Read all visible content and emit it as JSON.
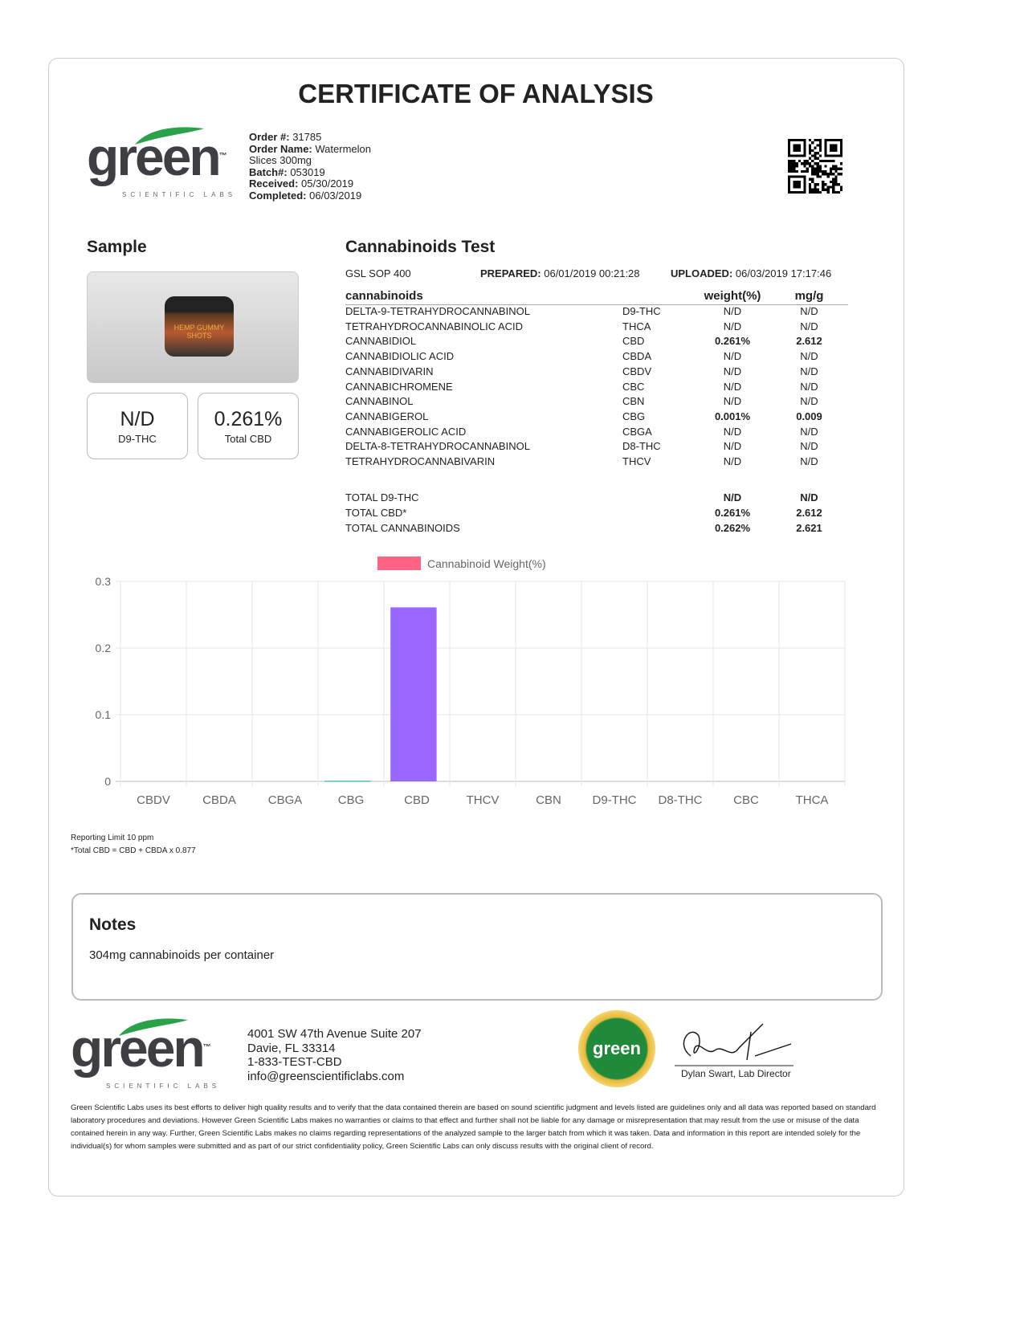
{
  "title": "CERTIFICATE OF ANALYSIS",
  "logo": {
    "text": "green",
    "sub": "SCIENTIFIC LABS",
    "tm": "™"
  },
  "order": {
    "order_label": "Order #:",
    "order": "31785",
    "name_label": "Order Name:",
    "name": "Watermelon",
    "name2": "Slices 300mg",
    "batch_label": "Batch#:",
    "batch": "053019",
    "received_label": "Received:",
    "received": "05/30/2019",
    "completed_label": "Completed:",
    "completed": "06/03/2019"
  },
  "sample": {
    "heading": "Sample",
    "image_alt": "HEMP GUMMY SHOTS",
    "thc_value": "N/D",
    "thc_label": "D9-THC",
    "cbd_value": "0.261%",
    "cbd_label": "Total CBD"
  },
  "test": {
    "heading": "Cannabinoids Test",
    "sop": "GSL SOP 400",
    "prepared_label": "PREPARED:",
    "prepared": "06/01/2019 00:21:28",
    "uploaded_label": "UPLOADED:",
    "uploaded": "06/03/2019 17:17:46",
    "headers": [
      "cannabinoids",
      "weight(%)",
      "mg/g"
    ],
    "rows": [
      [
        "DELTA-9-TETRAHYDROCANNABINOL",
        "D9-THC",
        "N/D",
        "N/D"
      ],
      [
        "TETRAHYDROCANNABINOLIC ACID",
        "THCA",
        "N/D",
        "N/D"
      ],
      [
        "CANNABIDIOL",
        "CBD",
        "0.261%",
        "2.612"
      ],
      [
        "CANNABIDIOLIC ACID",
        "CBDA",
        "N/D",
        "N/D"
      ],
      [
        "CANNABIDIVARIN",
        "CBDV",
        "N/D",
        "N/D"
      ],
      [
        "CANNABICHROMENE",
        "CBC",
        "N/D",
        "N/D"
      ],
      [
        "CANNABINOL",
        "CBN",
        "N/D",
        "N/D"
      ],
      [
        "CANNABIGEROL",
        "CBG",
        "0.001%",
        "0.009"
      ],
      [
        "CANNABIGEROLIC ACID",
        "CBGA",
        "N/D",
        "N/D"
      ],
      [
        "DELTA-8-TETRAHYDROCANNABINOL",
        "D8-THC",
        "N/D",
        "N/D"
      ],
      [
        "TETRAHYDROCANNABIVARIN",
        "THCV",
        "N/D",
        "N/D"
      ]
    ],
    "totals": [
      [
        "TOTAL D9-THC",
        "N/D",
        "N/D"
      ],
      [
        "TOTAL CBD*",
        "0.261%",
        "2.612"
      ],
      [
        "TOTAL CANNABINOIDS",
        "0.262%",
        "2.621"
      ]
    ]
  },
  "chart_data": {
    "type": "bar",
    "legend": "Cannabinoid Weight(%)",
    "legend_color": "#ff6384",
    "legend_placement": "top",
    "categories": [
      "CBDV",
      "CBDA",
      "CBGA",
      "CBG",
      "CBD",
      "THCV",
      "CBN",
      "D9-THC",
      "D8-THC",
      "CBC",
      "THCA"
    ],
    "values": [
      0,
      0,
      0,
      0.001,
      0.261,
      0,
      0,
      0,
      0,
      0,
      0
    ],
    "colors": {
      "CBG": "#4bc0c0",
      "CBD": "#9966ff"
    },
    "ylim": [
      0,
      0.3
    ],
    "yticks": [
      "0",
      "0.1",
      "0.2",
      "0.3"
    ],
    "grid": true
  },
  "footnotes": [
    "Reporting Limit 10 ppm",
    "*Total CBD = CBD + CBDA x 0.877"
  ],
  "notes": {
    "heading": "Notes",
    "text": "304mg cannabinoids per container"
  },
  "footer": {
    "address1": "4001 SW 47th Avenue Suite 207",
    "address2": "Davie, FL 33314",
    "phone": "1-833-TEST-CBD",
    "email": "info@greenscientificlabs.com",
    "seal": "OFFICIAL TEST green SEAL OF TESTING",
    "signer": "Dylan Swart, Lab Director",
    "disclaimer": "Green Scientific Labs uses its best efforts to deliver high quality results and to verify that the data contained therein are based on sound scientific judgment and levels listed are guidelines only and all data was reported based on standard laboratory procedures and deviations. However Green Scientific Labs makes no warranties or claims to that effect and further shall not be liable for any damage or misrepresentation that may result from the use or misuse of the data contained herein in any way. Further, Green Scientific Labs makes no claims regarding representations of the analyzed sample to the larger batch from which it was taken. Data and information in this report are intended solely for the individual(s) for whom samples were submitted and as part of our strict confidentiality policy, Green Scientific Labs can only discuss results with the original client of record."
  }
}
